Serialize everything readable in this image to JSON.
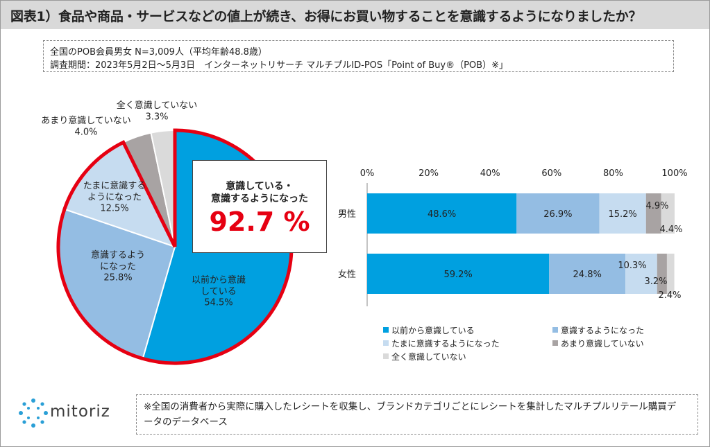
{
  "header": {
    "title": "図表1）食品や商品・サービスなどの値上が続き、お得にお買い物することを意識するようになりましたか？"
  },
  "info": {
    "line1": "全国のPOB会員男女 N=3,009人（平均年齢48.8歳）",
    "line2": "調査期間：2023年5月2日～5月3日　インターネットリサーチ マルチプルID-POS「Point of Buy®（POB）※」"
  },
  "callout": {
    "line1": "意識している・",
    "line2": "意識するようになった",
    "value": "92.7 %"
  },
  "footnote": "※全国の消費者から実際に購入したレシートを収集し、ブランドカテゴリごとにレシートを集計したマルチプルリテール購買データのデータベース",
  "logo": {
    "text": "mitoriz",
    "icon": "network-logo-icon"
  },
  "colors": {
    "c1": "#00a0e0",
    "c2": "#94bde3",
    "c3": "#c6dcf0",
    "c4": "#a8a3a3",
    "c5": "#dadada",
    "highlight": "#e60012"
  },
  "chart_data": [
    {
      "type": "pie",
      "categories": [
        "以前から意識している",
        "意識するようになった",
        "たまに意識するようになった",
        "あまり意識していない",
        "全く意識していない"
      ],
      "labels": [
        "以前から意識\nしている\n54.5%",
        "意識するよう\nになった\n25.8%",
        "たまに意識する\nようになった\n12.5%",
        "あまり意識していない\n4.0%",
        "全く意識していない\n3.3%"
      ],
      "values": [
        54.5,
        25.8,
        12.5,
        4.0,
        3.3
      ],
      "highlight_group": [
        0,
        1,
        2
      ],
      "highlight_total": 92.7
    },
    {
      "type": "bar",
      "orientation": "horizontal",
      "stacked": true,
      "categories": [
        "男性",
        "女性"
      ],
      "xlim": [
        0,
        100
      ],
      "xticks": [
        "0%",
        "20%",
        "40%",
        "60%",
        "80%",
        "100%"
      ],
      "legend_position": "bottom",
      "series": [
        {
          "name": "以前から意識している",
          "values": [
            48.6,
            59.2
          ],
          "labels": [
            "48.6%",
            "59.2%"
          ]
        },
        {
          "name": "意識するようになった",
          "values": [
            26.9,
            24.8
          ],
          "labels": [
            "26.9%",
            "24.8%"
          ]
        },
        {
          "name": "たまに意識するようになった",
          "values": [
            15.2,
            10.3
          ],
          "labels": [
            "15.2%",
            "10.3%"
          ]
        },
        {
          "name": "あまり意識していない",
          "values": [
            4.9,
            3.2
          ],
          "labels": [
            "4.9%",
            "3.2%"
          ]
        },
        {
          "name": "全く意識していない",
          "values": [
            4.4,
            2.4
          ],
          "labels": [
            "4.4%",
            "2.4%"
          ]
        }
      ]
    }
  ]
}
